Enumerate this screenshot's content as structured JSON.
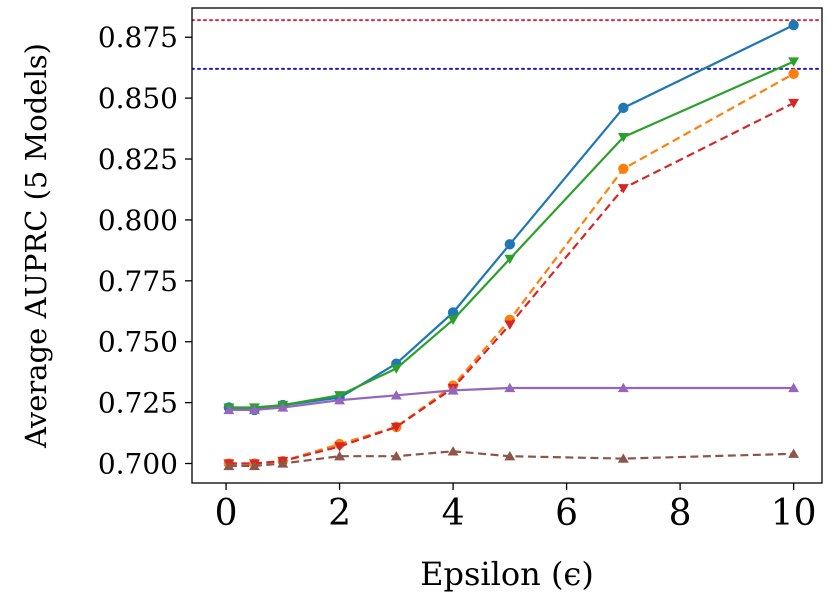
{
  "chart_data": {
    "type": "line",
    "title": "",
    "xlabel": "Epsilon (ϵ)",
    "ylabel": "Average AUPRC (5 Models)",
    "xlim": [
      -0.6,
      10.5
    ],
    "ylim": [
      0.692,
      0.887
    ],
    "xticks": [
      0,
      2,
      4,
      6,
      8,
      10
    ],
    "xtick_labels": [
      "0",
      "2",
      "4",
      "6",
      "8",
      "10"
    ],
    "yticks": [
      0.7,
      0.725,
      0.75,
      0.775,
      0.8,
      0.825,
      0.85,
      0.875
    ],
    "ytick_labels": [
      "0.700",
      "0.725",
      "0.750",
      "0.775",
      "0.800",
      "0.825",
      "0.850",
      "0.875"
    ],
    "grid": false,
    "x": [
      0.05,
      0.5,
      1,
      2,
      3,
      4,
      5,
      7,
      10
    ],
    "series": [
      {
        "name": "blue-solid-circle",
        "color": "#1f77b4",
        "dash": "solid",
        "marker": "circle",
        "values": [
          0.723,
          0.722,
          0.724,
          0.727,
          0.741,
          0.762,
          0.79,
          0.846,
          0.88
        ]
      },
      {
        "name": "green-solid-triangle-down",
        "color": "#2ca02c",
        "dash": "solid",
        "marker": "triangle-down",
        "values": [
          0.723,
          0.723,
          0.724,
          0.728,
          0.739,
          0.759,
          0.784,
          0.834,
          0.865
        ]
      },
      {
        "name": "orange-dashed-circle",
        "color": "#ff7f0e",
        "dash": "dashed",
        "marker": "circle",
        "values": [
          0.7,
          0.7,
          0.701,
          0.708,
          0.715,
          0.732,
          0.759,
          0.821,
          0.86
        ]
      },
      {
        "name": "red-dashed-triangle-down",
        "color": "#d62728",
        "dash": "dashed",
        "marker": "triangle-down",
        "values": [
          0.7,
          0.7,
          0.701,
          0.707,
          0.715,
          0.731,
          0.757,
          0.813,
          0.848
        ]
      },
      {
        "name": "purple-solid-triangle-up",
        "color": "#9467bd",
        "dash": "solid",
        "marker": "triangle-up",
        "values": [
          0.722,
          0.722,
          0.723,
          0.726,
          0.728,
          0.73,
          0.731,
          0.731,
          0.731
        ]
      },
      {
        "name": "brown-dashed-triangle-up",
        "color": "#8c564b",
        "dash": "dashed",
        "marker": "triangle-up",
        "values": [
          0.699,
          0.699,
          0.7,
          0.703,
          0.703,
          0.705,
          0.703,
          0.702,
          0.704
        ]
      }
    ],
    "reference_lines": [
      {
        "name": "red-dotted-reference",
        "color": "#e8243c",
        "value": 0.882
      },
      {
        "name": "blue-dotted-reference",
        "color": "#1a1acc",
        "value": 0.862
      }
    ]
  }
}
